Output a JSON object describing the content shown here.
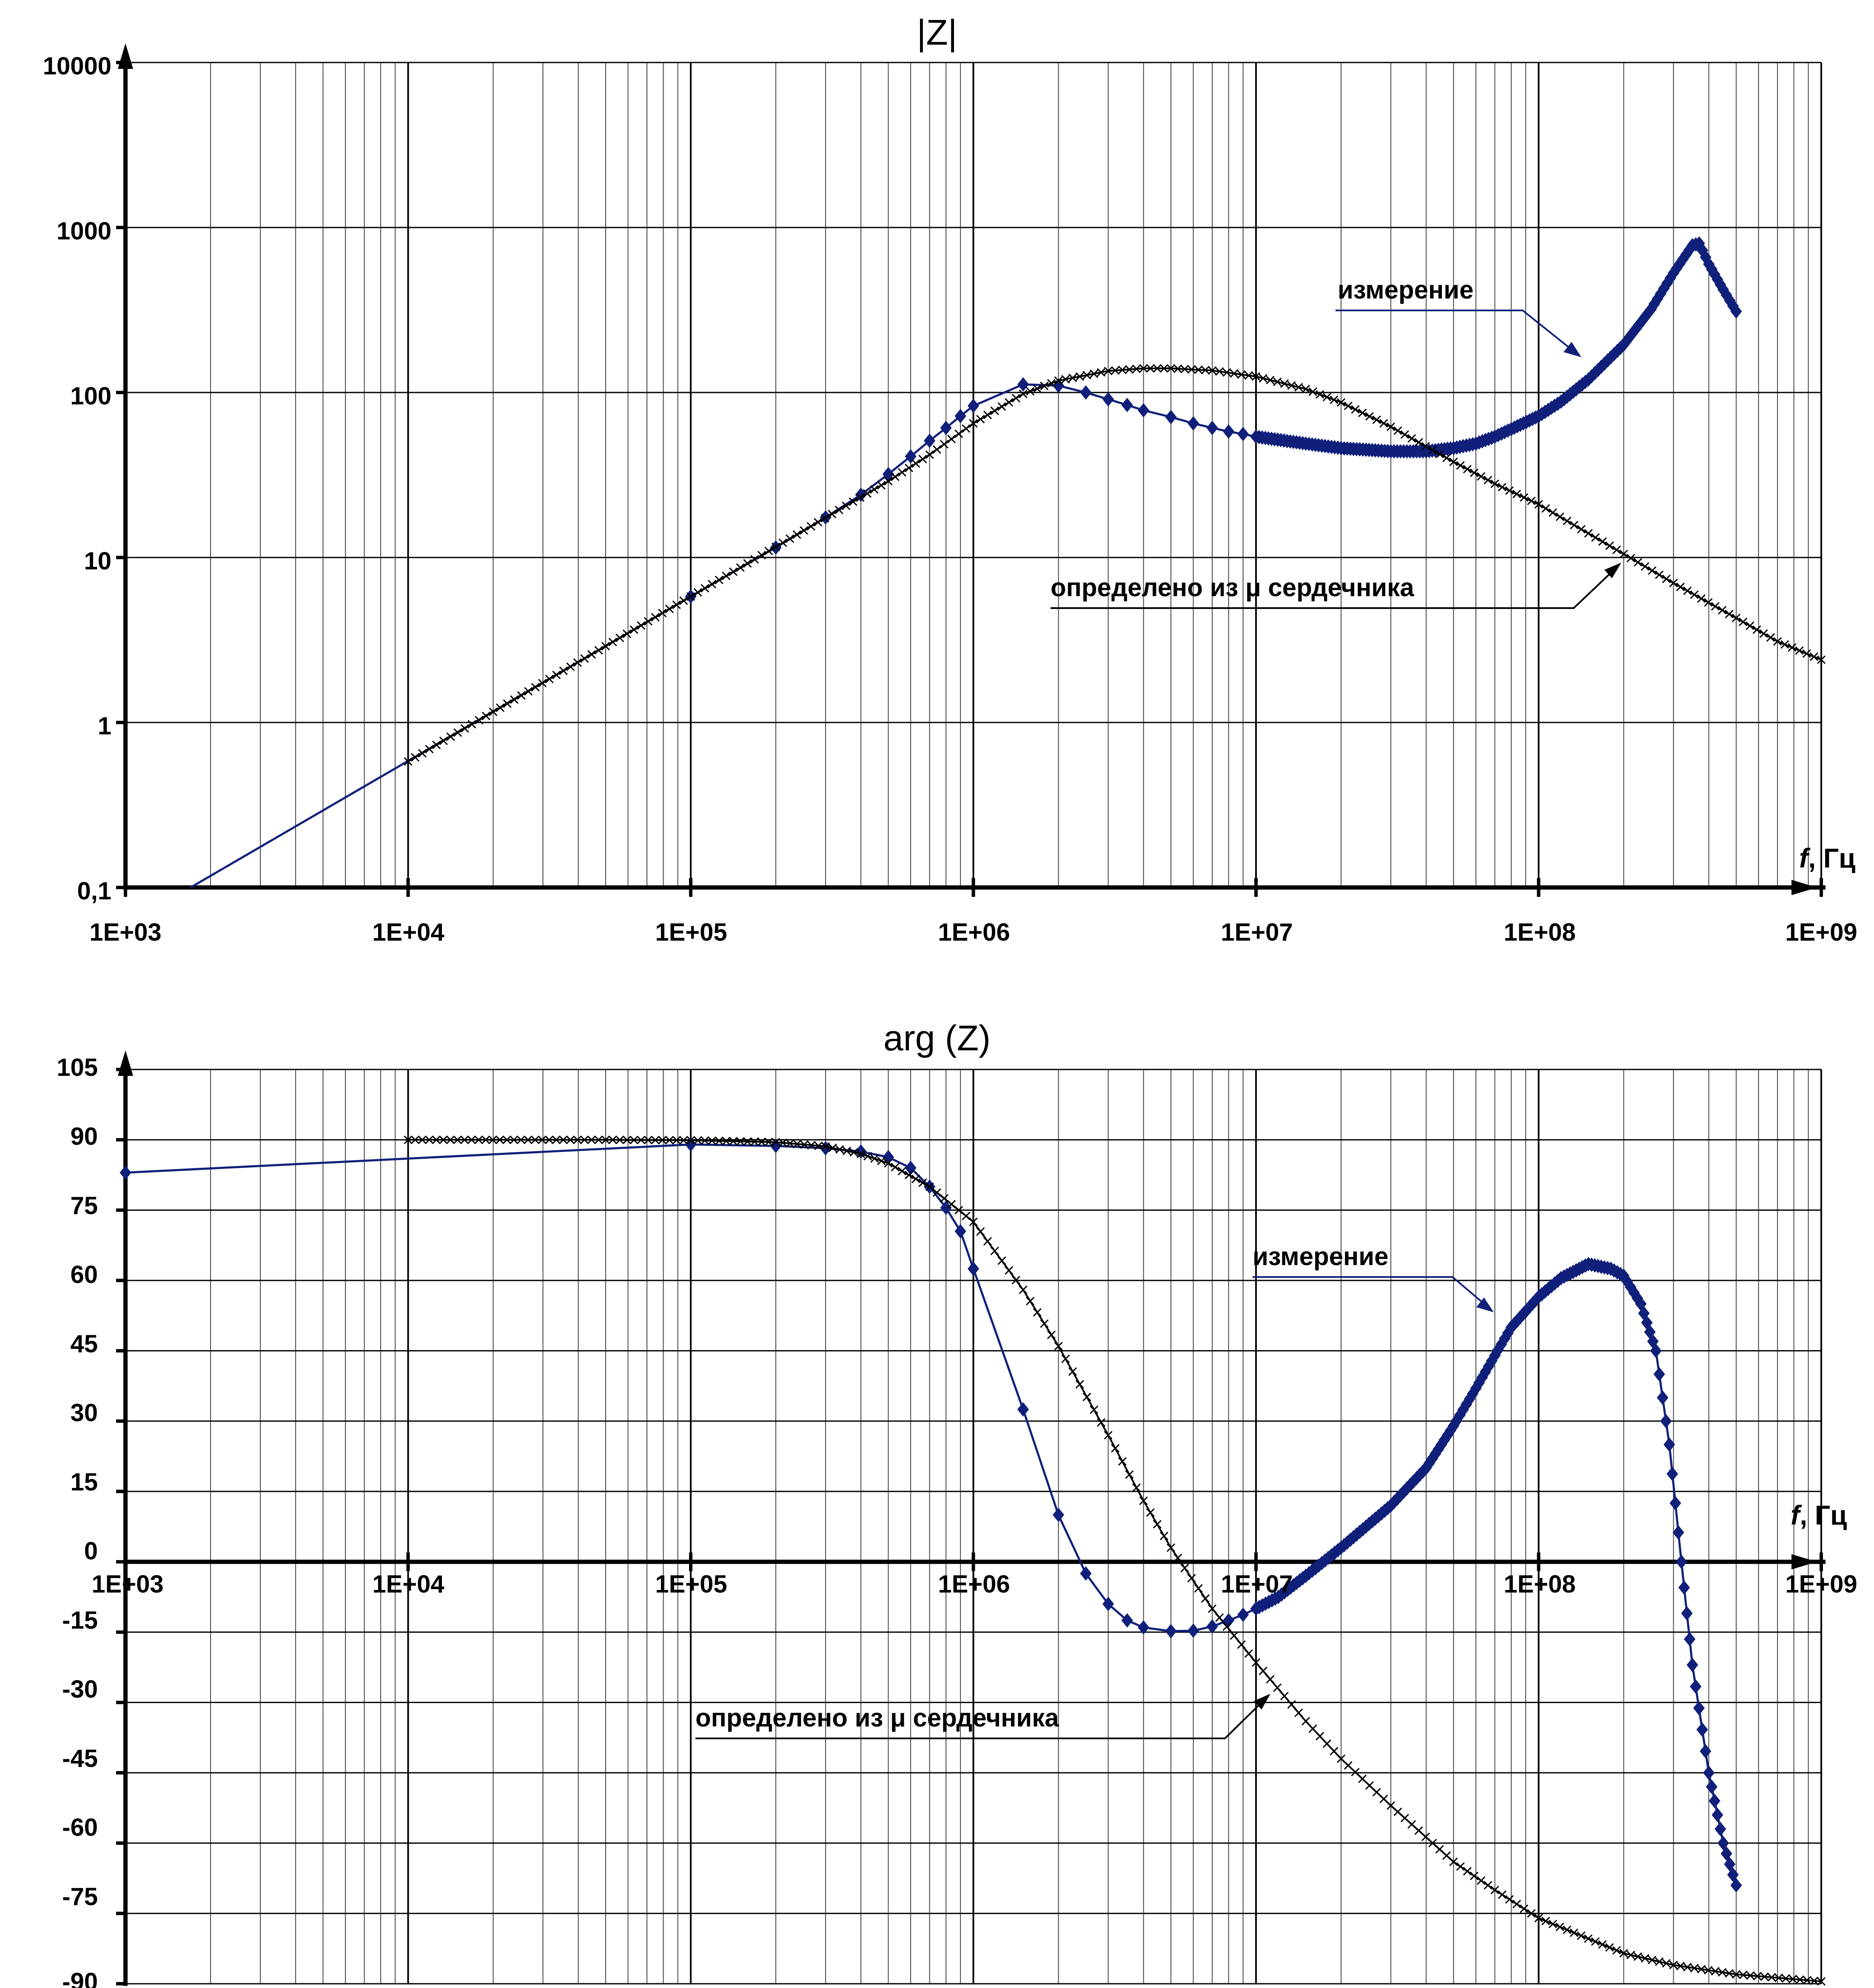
{
  "colors": {
    "measured": "#10207a",
    "model": "#000000",
    "grid": "#000000",
    "background": "#ffffff"
  },
  "chart_data": [
    {
      "type": "line",
      "title": "|Z|",
      "xlabel_italic": "f",
      "xlabel_unit": ", Гц",
      "x_scale": "log",
      "y_scale": "log",
      "xlim": [
        1000,
        1000000000
      ],
      "ylim": [
        0.1,
        10000
      ],
      "x_tick_labels": [
        "1E+03",
        "1E+04",
        "1E+05",
        "1E+06",
        "1E+07",
        "1E+08",
        "1E+09"
      ],
      "y_tick_labels": [
        "0,1",
        "1",
        "10",
        "100",
        "1000",
        "10000"
      ],
      "grid": true,
      "annotations": [
        {
          "text": "измерение",
          "target_series": "measured"
        },
        {
          "text": "определено из μ сердечника",
          "target_series": "model"
        }
      ],
      "series": [
        {
          "id": "measured",
          "marker": "diamond",
          "points": [
            [
              1700,
              0.1
            ],
            [
              100000,
              5.8
            ],
            [
              200000,
              11.5
            ],
            [
              300000,
              17.5
            ],
            [
              400000,
              24
            ],
            [
              500000,
              32
            ],
            [
              600000,
              41
            ],
            [
              700000,
              51
            ],
            [
              800000,
              61
            ],
            [
              900000,
              72
            ],
            [
              1000000,
              83
            ],
            [
              1500000,
              112
            ],
            [
              2000000,
              110
            ],
            [
              2500000,
              100
            ],
            [
              3000000,
              91
            ],
            [
              3500000,
              84
            ],
            [
              4000000,
              78
            ],
            [
              5000000,
              71
            ],
            [
              6000000,
              65
            ],
            [
              7000000,
              61
            ],
            [
              8000000,
              58
            ],
            [
              9000000,
              56
            ],
            [
              10000000,
              54
            ],
            [
              15000000,
              49
            ],
            [
              20000000,
              46
            ],
            [
              30000000,
              44
            ],
            [
              40000000,
              44
            ],
            [
              50000000,
              46
            ],
            [
              60000000,
              49
            ],
            [
              70000000,
              54
            ],
            [
              80000000,
              60
            ],
            [
              100000000,
              72
            ],
            [
              120000000,
              88
            ],
            [
              150000000,
              120
            ],
            [
              200000000,
              195
            ],
            [
              250000000,
              320
            ],
            [
              300000000,
              530
            ],
            [
              350000000,
              780
            ],
            [
              370000000,
              800
            ],
            [
              400000000,
              600
            ],
            [
              450000000,
              420
            ],
            [
              500000000,
              310
            ]
          ]
        },
        {
          "id": "model",
          "marker": "x",
          "points": [
            [
              10000,
              0.58
            ],
            [
              20000,
              1.16
            ],
            [
              50000,
              2.9
            ],
            [
              100000,
              5.8
            ],
            [
              200000,
              11.6
            ],
            [
              500000,
              29
            ],
            [
              700000,
              42
            ],
            [
              1000000,
              65
            ],
            [
              1500000,
              98
            ],
            [
              2000000,
              118
            ],
            [
              3000000,
              135
            ],
            [
              4000000,
              140
            ],
            [
              5000000,
              140
            ],
            [
              7000000,
              136
            ],
            [
              10000000,
              125
            ],
            [
              15000000,
              105
            ],
            [
              20000000,
              87
            ],
            [
              30000000,
              62
            ],
            [
              50000000,
              38
            ],
            [
              70000000,
              28
            ],
            [
              100000000,
              21
            ],
            [
              150000000,
              14
            ],
            [
              200000000,
              10.5
            ],
            [
              300000000,
              7
            ],
            [
              500000000,
              4.3
            ],
            [
              700000000,
              3.1
            ],
            [
              1000000000,
              2.4
            ]
          ]
        }
      ]
    },
    {
      "type": "line",
      "title": "arg (Z)",
      "xlabel_italic": "f",
      "xlabel_unit": ", Гц",
      "x_scale": "log",
      "xlim": [
        1000,
        1000000000
      ],
      "ylim": [
        -90,
        105
      ],
      "x_tick_labels": [
        "1E+03",
        "1E+04",
        "1E+05",
        "1E+06",
        "1E+07",
        "1E+08",
        "1E+09"
      ],
      "y_tick_labels": [
        "-90",
        "-75",
        "-60",
        "-45",
        "-30",
        "-15",
        "0",
        "15",
        "30",
        "45",
        "60",
        "75",
        "90",
        "105"
      ],
      "grid": true,
      "annotations": [
        {
          "text": "измерение",
          "target_series": "measured"
        },
        {
          "text": "определено из μ сердечника",
          "target_series": "model"
        }
      ],
      "series": [
        {
          "id": "measured",
          "marker": "diamond",
          "points": [
            [
              1000,
              83
            ],
            [
              100000,
              89
            ],
            [
              200000,
              88.7
            ],
            [
              300000,
              88.2
            ],
            [
              400000,
              87.5
            ],
            [
              500000,
              86.3
            ],
            [
              600000,
              84
            ],
            [
              700000,
              80
            ],
            [
              800000,
              75.5
            ],
            [
              900000,
              70.5
            ],
            [
              1000000,
              62.5
            ],
            [
              1500000,
              32.5
            ],
            [
              2000000,
              10
            ],
            [
              2500000,
              -2.5
            ],
            [
              3000000,
              -9
            ],
            [
              3500000,
              -12.5
            ],
            [
              4000000,
              -14
            ],
            [
              5000000,
              -14.8
            ],
            [
              6000000,
              -14.7
            ],
            [
              7000000,
              -13.8
            ],
            [
              8000000,
              -12.5
            ],
            [
              9000000,
              -11.3
            ],
            [
              10000000,
              -10
            ],
            [
              12000000,
              -7.5
            ],
            [
              15000000,
              -3
            ],
            [
              20000000,
              3
            ],
            [
              30000000,
              12
            ],
            [
              40000000,
              20
            ],
            [
              50000000,
              29
            ],
            [
              60000000,
              37
            ],
            [
              70000000,
              44
            ],
            [
              80000000,
              50
            ],
            [
              100000000,
              56.5
            ],
            [
              120000000,
              60.5
            ],
            [
              150000000,
              63.5
            ],
            [
              180000000,
              62.5
            ],
            [
              200000000,
              61
            ],
            [
              230000000,
              55
            ],
            [
              260000000,
              45
            ],
            [
              290000000,
              25
            ],
            [
              320000000,
              0
            ],
            [
              350000000,
              -22
            ],
            [
              400000000,
              -45
            ],
            [
              450000000,
              -60
            ],
            [
              500000000,
              -69
            ]
          ]
        },
        {
          "id": "model",
          "marker": "x",
          "points": [
            [
              10000,
              90
            ],
            [
              50000,
              90
            ],
            [
              100000,
              89.9
            ],
            [
              200000,
              89.5
            ],
            [
              300000,
              88.6
            ],
            [
              400000,
              87
            ],
            [
              500000,
              85
            ],
            [
              700000,
              80
            ],
            [
              1000000,
              72.5
            ],
            [
              1500000,
              58
            ],
            [
              2000000,
              46
            ],
            [
              3000000,
              27
            ],
            [
              4000000,
              13
            ],
            [
              5000000,
              3
            ],
            [
              7000000,
              -10
            ],
            [
              10000000,
              -21.5
            ],
            [
              15000000,
              -34
            ],
            [
              20000000,
              -42
            ],
            [
              30000000,
              -52
            ],
            [
              50000000,
              -64
            ],
            [
              70000000,
              -70
            ],
            [
              100000000,
              -76
            ],
            [
              200000000,
              -83.5
            ],
            [
              300000000,
              -86
            ],
            [
              500000000,
              -88
            ],
            [
              1000000000,
              -89.5
            ]
          ]
        }
      ]
    }
  ]
}
